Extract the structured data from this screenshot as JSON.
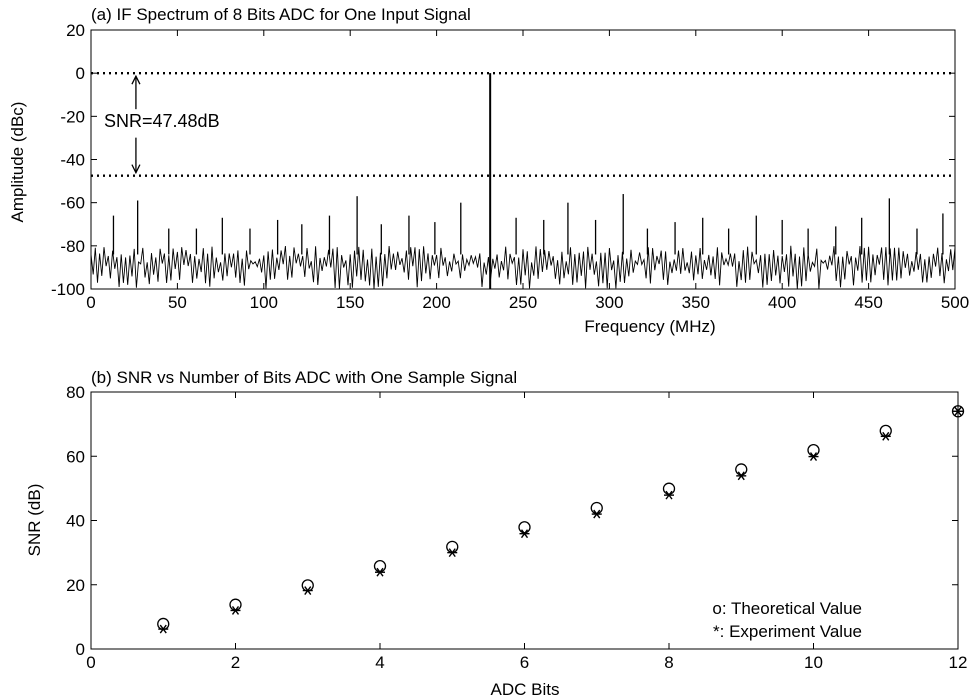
{
  "chart_data": [
    {
      "type": "line",
      "title": "(a) IF Spectrum of 8 Bits ADC for One Input Signal",
      "xlabel": "Frequency (MHz)",
      "ylabel": "Amplitude (dBc)",
      "xlim": [
        0,
        500
      ],
      "ylim": [
        -100,
        20
      ],
      "xticks": [
        "0",
        "50",
        "100",
        "150",
        "200",
        "250",
        "300",
        "350",
        "400",
        "450",
        "500"
      ],
      "yticks": [
        "20",
        "0",
        "-20",
        "-40",
        "-60",
        "-80",
        "-100"
      ],
      "grid": false,
      "signal": {
        "x": 231,
        "y": 0
      },
      "reference_lines": [
        {
          "y": 0,
          "style": "dotted"
        },
        {
          "y": -47.48,
          "style": "dotted"
        }
      ],
      "annotation": {
        "text": "SNR=47.48dB",
        "x": 26,
        "y_from": 0,
        "y_to": -47.48
      },
      "spurs": [
        {
          "x": 13,
          "y": -66
        },
        {
          "x": 27,
          "y": -59
        },
        {
          "x": 45,
          "y": -72
        },
        {
          "x": 61,
          "y": -72
        },
        {
          "x": 76,
          "y": -67
        },
        {
          "x": 92,
          "y": -72
        },
        {
          "x": 108,
          "y": -68
        },
        {
          "x": 122,
          "y": -70
        },
        {
          "x": 138,
          "y": -66
        },
        {
          "x": 154,
          "y": -57
        },
        {
          "x": 168,
          "y": -70
        },
        {
          "x": 184,
          "y": -66
        },
        {
          "x": 199,
          "y": -69
        },
        {
          "x": 214,
          "y": -60
        },
        {
          "x": 246,
          "y": -67
        },
        {
          "x": 262,
          "y": -68
        },
        {
          "x": 276,
          "y": -60
        },
        {
          "x": 292,
          "y": -68
        },
        {
          "x": 308,
          "y": -56
        },
        {
          "x": 322,
          "y": -72
        },
        {
          "x": 338,
          "y": -69
        },
        {
          "x": 354,
          "y": -67
        },
        {
          "x": 369,
          "y": -72
        },
        {
          "x": 385,
          "y": -66
        },
        {
          "x": 400,
          "y": -68
        },
        {
          "x": 415,
          "y": -72
        },
        {
          "x": 431,
          "y": -71
        },
        {
          "x": 446,
          "y": -67
        },
        {
          "x": 462,
          "y": -58
        },
        {
          "x": 478,
          "y": -72
        },
        {
          "x": 493,
          "y": -65
        }
      ],
      "noise_floor_range": [
        -100,
        -80
      ]
    },
    {
      "type": "scatter",
      "title": "(b) SNR vs Number of Bits ADC with One Sample Signal",
      "xlabel": "ADC Bits",
      "ylabel": "SNR (dB)",
      "xlim": [
        0,
        12
      ],
      "ylim": [
        0,
        80
      ],
      "xticks": [
        "0",
        "2",
        "4",
        "6",
        "8",
        "10",
        "12"
      ],
      "yticks": [
        "80",
        "60",
        "40",
        "20",
        "0"
      ],
      "grid": false,
      "x": [
        1,
        2,
        3,
        4,
        5,
        6,
        7,
        8,
        9,
        10,
        11,
        12
      ],
      "series": [
        {
          "name": "Theoretical Value",
          "marker": "o",
          "values": [
            7.8,
            13.8,
            19.8,
            25.8,
            31.8,
            37.9,
            43.9,
            49.9,
            55.9,
            61.9,
            67.9,
            74.0
          ]
        },
        {
          "name": "Experiment Value",
          "marker": "*",
          "values": [
            6.2,
            12.0,
            18.2,
            23.9,
            30.0,
            35.9,
            42.0,
            47.9,
            53.9,
            59.9,
            66.2,
            74.0
          ]
        }
      ],
      "legend": {
        "position": "bottom-right",
        "entries": [
          "o: Theoretical Value",
          "*: Experiment Value"
        ]
      }
    }
  ]
}
